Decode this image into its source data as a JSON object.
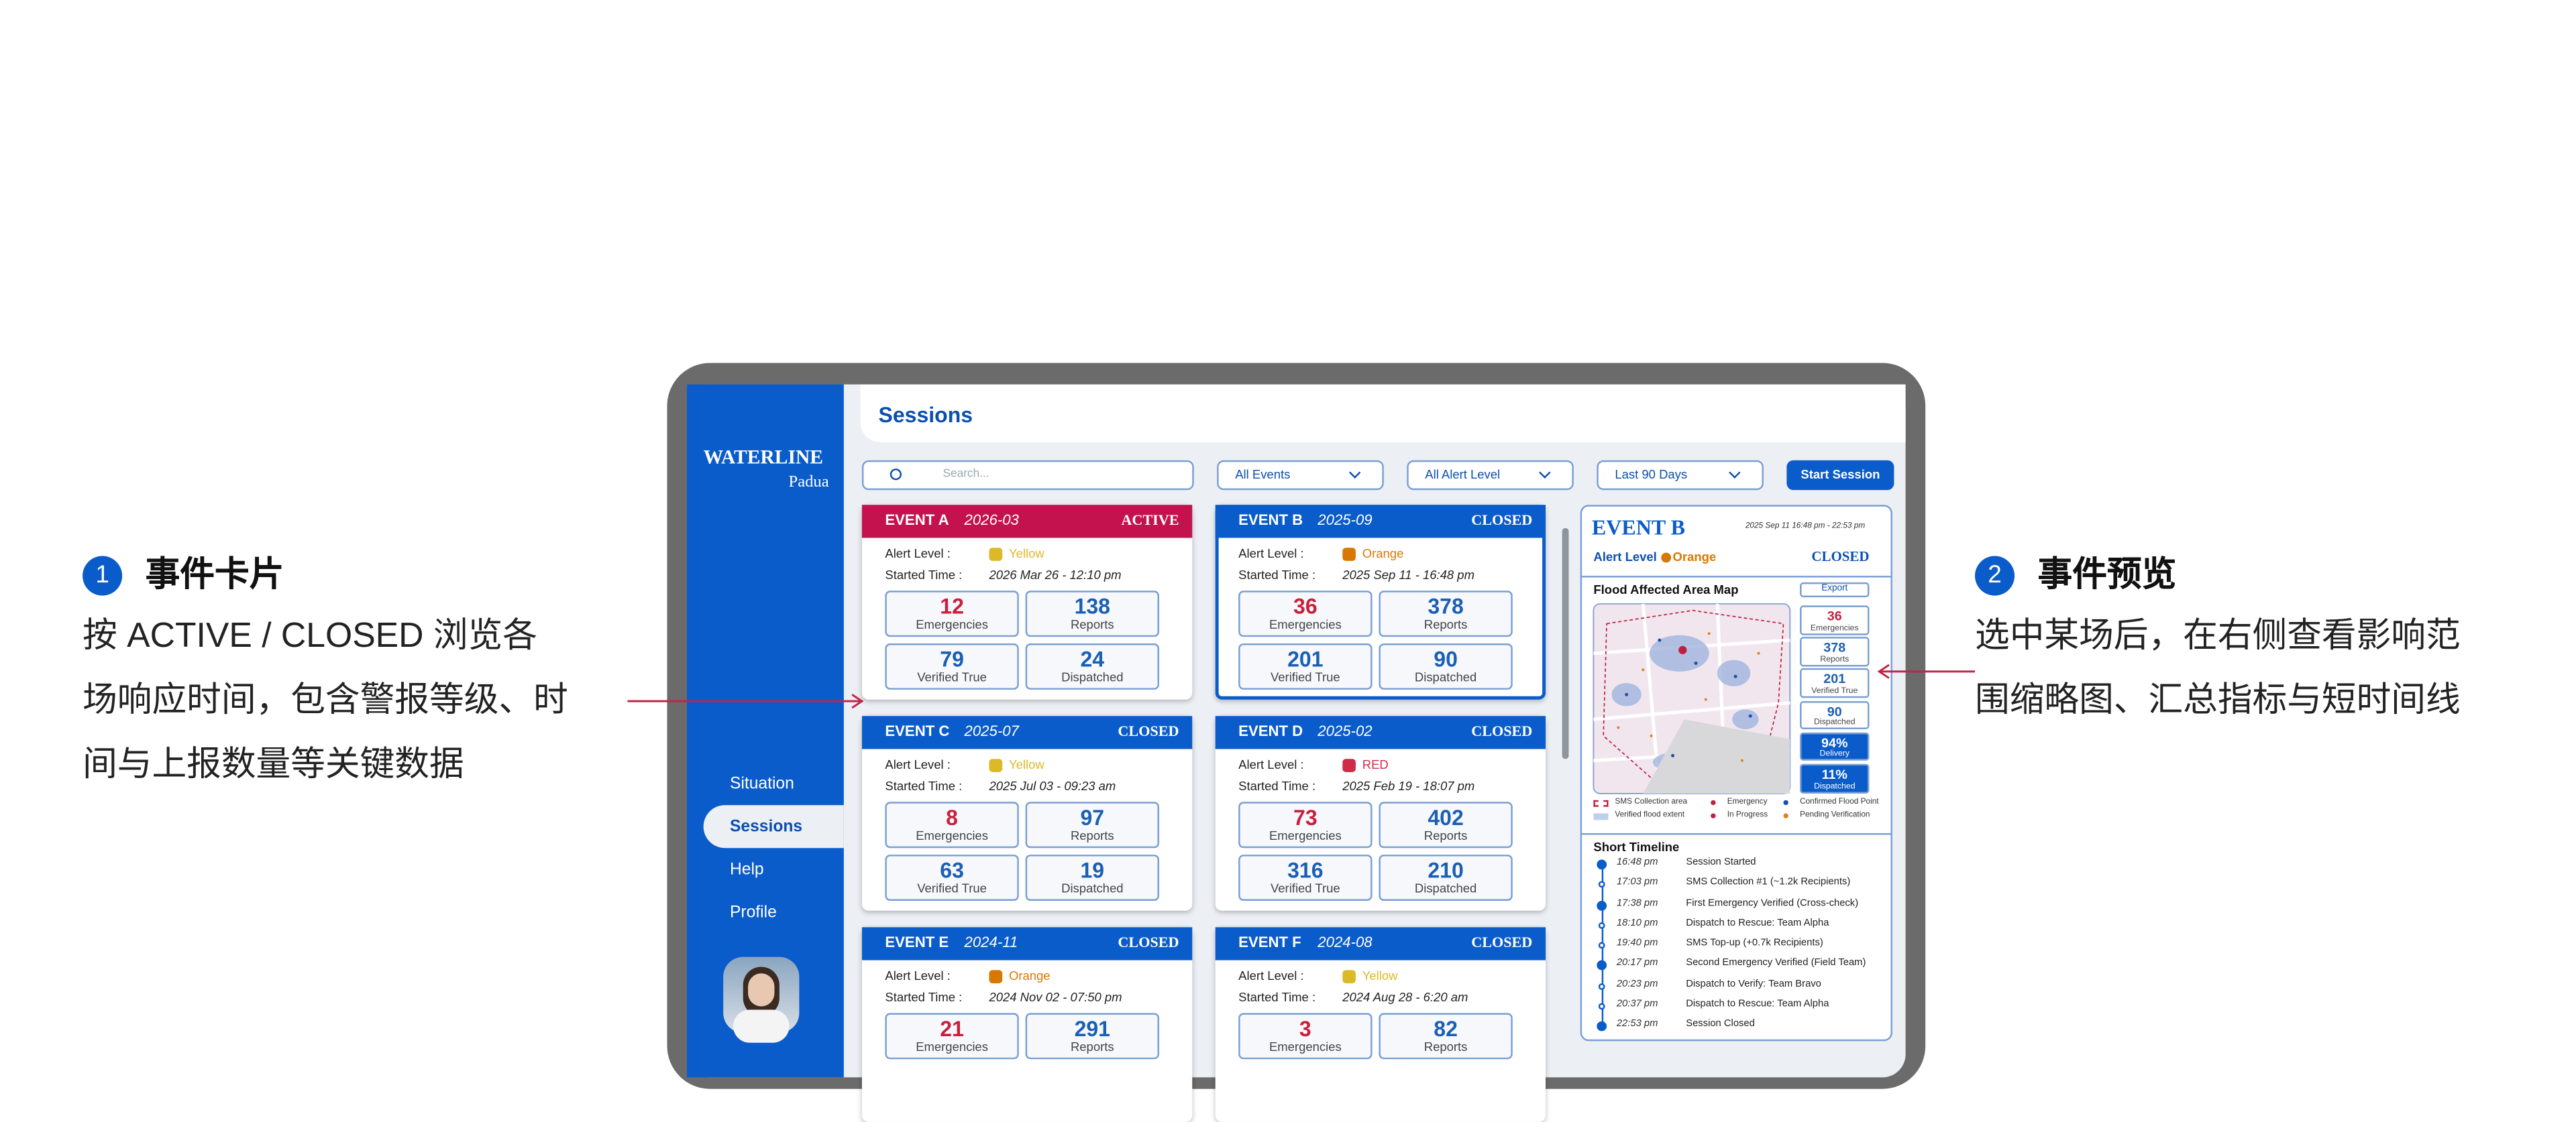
{
  "annotations": [
    {
      "number": "1",
      "title": "事件卡片",
      "lines": [
        "按 ACTIVE / CLOSED 浏览各",
        "场响应时间，包含警报等级、时",
        "间与上报数量等关键数据"
      ]
    },
    {
      "number": "2",
      "title": "事件预览",
      "lines": [
        "选中某场后，在右侧查看影响范",
        "围缩略图、汇总指标与短时间线"
      ]
    }
  ],
  "sidebar": {
    "brand": "WATERLINE",
    "city": "Padua",
    "nav": [
      "Situation",
      "Sessions",
      "Help",
      "Profile"
    ],
    "active_nav": 1
  },
  "header": {
    "title": "Sessions"
  },
  "toolbar": {
    "search_placeholder": "Search...",
    "filters": [
      "All Events",
      "All Alert Level",
      "Last 90 Days"
    ],
    "button": "Start Session"
  },
  "cards": {
    "alert_label": "Alert Level :",
    "time_label": "Started  Time :",
    "stat_labels": [
      "Emergencies",
      "Reports",
      "Verified True",
      "Dispatched"
    ],
    "selected": 1,
    "items": [
      {
        "name": "EVENT A",
        "date": "2026-03",
        "status": "ACTIVE",
        "header_color": "#c3124d",
        "alert": "Yellow",
        "alert_color": "#dcb928",
        "started": "2026 Mar 26 - 12:10 pm",
        "stats": [
          12,
          138,
          79,
          24
        ]
      },
      {
        "name": "EVENT B",
        "date": "2025-09",
        "status": "CLOSED",
        "header_color": "#0b5ccb",
        "alert": "Orange",
        "alert_color": "#d97800",
        "started": "2025 Sep 11 - 16:48 pm",
        "stats": [
          36,
          378,
          201,
          90
        ]
      },
      {
        "name": "EVENT C",
        "date": "2025-07",
        "status": "CLOSED",
        "header_color": "#0b5ccb",
        "alert": "Yellow",
        "alert_color": "#dcb928",
        "started": "2025 Jul 03 - 09:23 am",
        "stats": [
          8,
          97,
          63,
          19
        ]
      },
      {
        "name": "EVENT D",
        "date": "2025-02",
        "status": "CLOSED",
        "header_color": "#0b5ccb",
        "alert": "RED",
        "alert_color": "#d02c48",
        "started": "2025 Feb 19 - 18:07 pm",
        "stats": [
          73,
          402,
          316,
          210
        ]
      },
      {
        "name": "EVENT E",
        "date": "2024-11",
        "status": "CLOSED",
        "header_color": "#0b5ccb",
        "alert": "Orange",
        "alert_color": "#d97800",
        "started": "2024 Nov 02 - 07:50 pm",
        "stats": [
          21,
          291
        ]
      },
      {
        "name": "EVENT F",
        "date": "2024-08",
        "status": "CLOSED",
        "header_color": "#0b5ccb",
        "alert": "Yellow",
        "alert_color": "#dcb928",
        "started": "2024 Aug 28 - 6:20 am",
        "stats": [
          3,
          82
        ]
      }
    ]
  },
  "preview": {
    "name": "EVENT B",
    "range": "2025 Sep 11 16:48 pm - 22:53 pm",
    "alert_label": "Alert Level",
    "alert": "Orange",
    "alert_color": "#d97800",
    "status": "CLOSED",
    "map_title": "Flood Affected Area Map",
    "export": "Export",
    "metrics": [
      {
        "value": 36,
        "label": "Emergencies"
      },
      {
        "value": 378,
        "label": "Reports"
      },
      {
        "value": 201,
        "label": "Verified True"
      },
      {
        "value": 90,
        "label": "Dispatched"
      },
      {
        "value": "94%",
        "label": "Delivery",
        "highlight": true
      },
      {
        "value": "11%",
        "label": "Dispatched",
        "highlight": true
      }
    ],
    "legend": [
      "SMS Collection area",
      "Emergency",
      "Confirmed Flood Point",
      "Verified flood extent",
      "In Progress",
      "Pending Verification"
    ],
    "timeline_title": "Short Timeline",
    "timeline": [
      {
        "time": "16:48 pm",
        "text": "Session Started",
        "major": true
      },
      {
        "time": "17:03 pm",
        "text": "SMS Collection #1 (~1.2k Recipients)"
      },
      {
        "time": "17:38 pm",
        "text": "First Emergency Verified (Cross-check)",
        "major": true
      },
      {
        "time": "18:10 pm",
        "text": "Dispatch to Rescue: Team Alpha"
      },
      {
        "time": "19:40 pm",
        "text": "SMS Top-up (+0.7k Recipients)"
      },
      {
        "time": "20:17 pm",
        "text": "Second Emergency Verified (Field Team)",
        "major": true
      },
      {
        "time": "20:23 pm",
        "text": "Dispatch to Verify: Team Bravo"
      },
      {
        "time": "20:37 pm",
        "text": "Dispatch to Rescue: Team Alpha"
      },
      {
        "time": "22:53 pm",
        "text": "Session Closed",
        "major": true
      }
    ]
  }
}
